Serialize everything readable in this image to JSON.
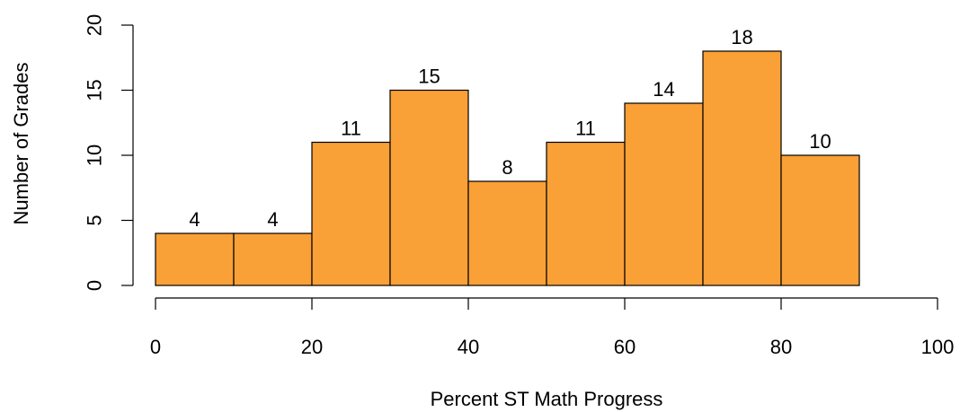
{
  "chart_data": {
    "type": "bar",
    "bins": [
      {
        "from": 0,
        "to": 10,
        "value": 4
      },
      {
        "from": 10,
        "to": 20,
        "value": 4
      },
      {
        "from": 20,
        "to": 30,
        "value": 11
      },
      {
        "from": 30,
        "to": 40,
        "value": 15
      },
      {
        "from": 40,
        "to": 50,
        "value": 8
      },
      {
        "from": 50,
        "to": 60,
        "value": 11
      },
      {
        "from": 60,
        "to": 70,
        "value": 14
      },
      {
        "from": 70,
        "to": 80,
        "value": 18
      },
      {
        "from": 80,
        "to": 90,
        "value": 10
      }
    ],
    "xlabel": "Percent ST Math Progress",
    "ylabel": "Number of Grades",
    "xlim": [
      0,
      100
    ],
    "ylim": [
      0,
      20
    ],
    "x_ticks": [
      0,
      20,
      40,
      60,
      80,
      100
    ],
    "y_ticks": [
      0,
      5,
      10,
      15,
      20
    ],
    "bar_color": "#f9a037",
    "bar_border_color": "#000000",
    "grid": false,
    "legend": "none",
    "data_labels": true
  }
}
